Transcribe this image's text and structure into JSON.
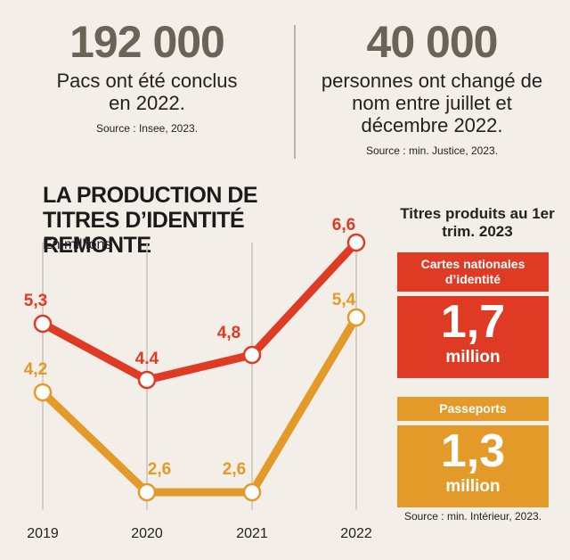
{
  "stats": [
    {
      "value": "192 000",
      "text": "Pacs ont été conclus en 2022.",
      "source": "Source : Insee, 2023."
    },
    {
      "value": "40 000",
      "text": "personnes ont changé de nom entre juillet et décembre 2022.",
      "source": "Source : min. Justice, 2023."
    }
  ],
  "side": {
    "title": "Titres produits au 1er trim. 2023",
    "cards": [
      {
        "label": "Cartes nationales d’identité",
        "value": "1,7",
        "unit": "million",
        "color": "#df3a24"
      },
      {
        "label": "Passeports",
        "value": "1,3",
        "unit": "million",
        "color": "#e39a28"
      }
    ],
    "source": "Source : min. Intérieur, 2023."
  },
  "chart_data": {
    "type": "line",
    "title": "LA PRODUCTION DE TITRES D’IDENTITÉ REMONTE",
    "subtitle": "En millions",
    "categories": [
      "2019",
      "2020",
      "2021",
      "2022"
    ],
    "series": [
      {
        "values": [
          5.3,
          4.4,
          4.8,
          6.6
        ],
        "labels": [
          "5,3",
          "4.4",
          "4,8",
          "6,6"
        ],
        "color": "#df3a24"
      },
      {
        "values": [
          4.2,
          2.6,
          2.6,
          5.4
        ],
        "labels": [
          "4,2",
          "2,6",
          "2,6",
          "5,4"
        ],
        "color": "#e39a28"
      }
    ],
    "ylim": [
      2.6,
      6.6
    ],
    "grid": "vertical"
  }
}
